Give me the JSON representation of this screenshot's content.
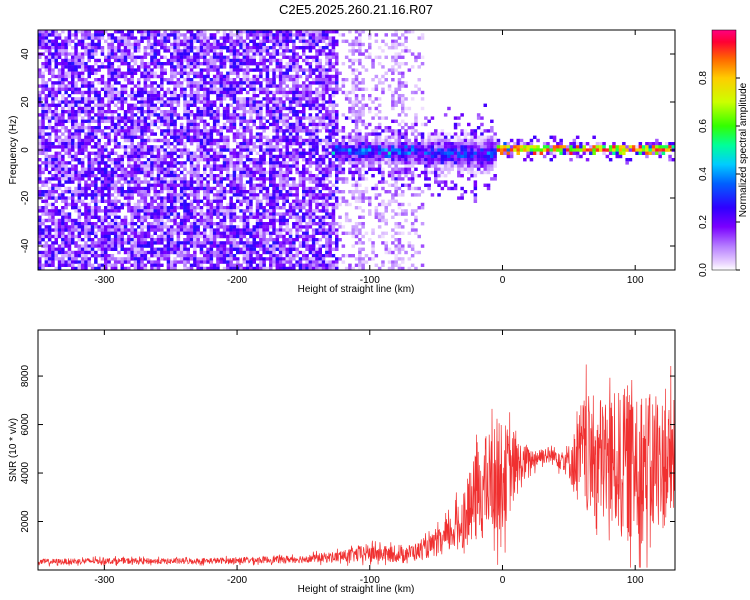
{
  "figure": {
    "title": "C2E5.2025.260.21.16.R07"
  },
  "colorbar": {
    "label": "Normalized spectral amplitude",
    "ticks": [
      "0.0",
      "0.2",
      "0.4",
      "0.6",
      "0.8"
    ],
    "tick_values": [
      0,
      0.2,
      0.4,
      0.6,
      0.8
    ],
    "range": [
      0,
      1
    ],
    "colors": [
      "#ffffff",
      "#e9d2ff",
      "#b57cff",
      "#7a00ff",
      "#2f00ff",
      "#0060ff",
      "#00ccff",
      "#00ff99",
      "#33ff00",
      "#ccff00",
      "#ffcc00",
      "#ff6600",
      "#ff0033",
      "#ff0080"
    ]
  },
  "chart_data": [
    {
      "type": "heatmap",
      "title": "",
      "xlabel": "Height of straight line (km)",
      "ylabel": "Frequency (Hz)",
      "xlim": [
        -350,
        130
      ],
      "ylim": [
        -50,
        50
      ],
      "xticks": [
        -300,
        -200,
        -100,
        0,
        100
      ],
      "yticks": [
        -40,
        -20,
        0,
        20,
        40
      ],
      "xtick_labels": [
        "-300",
        "-200",
        "-100",
        "0",
        "100"
      ],
      "ytick_labels": [
        "-40",
        "-20",
        "0",
        "20",
        "40"
      ],
      "grid": false,
      "regions": [
        {
          "name": "noise",
          "x_range": [
            -350,
            -125
          ],
          "y_range": [
            -50,
            50
          ],
          "level": 0.15
        },
        {
          "name": "sparse-noise",
          "x_range": [
            -125,
            -60
          ],
          "y_range": [
            -50,
            50
          ],
          "level": 0.08
        },
        {
          "name": "onset",
          "x_range": [
            -130,
            -60
          ],
          "y_center": 0,
          "half_width": 6,
          "level": 0.35
        },
        {
          "name": "turbulent",
          "x_range": [
            -60,
            -5
          ],
          "y_center": -1,
          "half_width": 8,
          "level": 0.3
        },
        {
          "name": "stable-trail",
          "x_range": [
            -5,
            130
          ],
          "y_center": 1,
          "half_width": 2,
          "level": 0.75
        }
      ]
    },
    {
      "type": "line",
      "title": "",
      "xlabel": "Height of straight line (km)",
      "ylabel": "SNR (10 * v/v)",
      "xlim": [
        -350,
        130
      ],
      "ylim": [
        0,
        9900
      ],
      "xticks": [
        -300,
        -200,
        -100,
        0,
        100
      ],
      "yticks": [
        2000,
        4000,
        6000,
        8000
      ],
      "xtick_labels": [
        "-300",
        "-200",
        "-100",
        "0",
        "100"
      ],
      "ytick_labels": [
        "2000",
        "4000",
        "6000",
        "8000"
      ],
      "grid": false,
      "color": "#f03030",
      "series": [
        {
          "x": [
            -350,
            -300,
            -250,
            -200,
            -150,
            -120,
            -100,
            -80,
            -60,
            -45,
            -30,
            -20,
            -10,
            0,
            10,
            20,
            30,
            40,
            50,
            55,
            60,
            70,
            80,
            90,
            100,
            110,
            120,
            130
          ],
          "y_base": [
            330,
            380,
            360,
            390,
            460,
            560,
            720,
            620,
            820,
            1200,
            2000,
            3000,
            3600,
            3900,
            4200,
            4500,
            4750,
            4700,
            4500,
            4400,
            4800,
            4600,
            4500,
            4400,
            4500,
            4300,
            4400,
            4500
          ],
          "y_spread": [
            120,
            130,
            120,
            130,
            160,
            250,
            400,
            300,
            380,
            600,
            1100,
            1900,
            2200,
            2300,
            1300,
            500,
            350,
            400,
            700,
            1500,
            2400,
            2600,
            2800,
            3000,
            3600,
            3000,
            2800,
            2500
          ]
        }
      ]
    }
  ]
}
